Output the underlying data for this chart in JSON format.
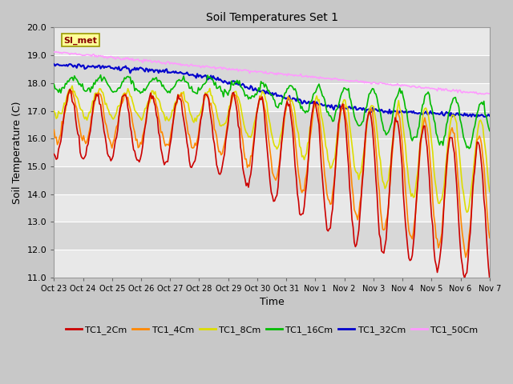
{
  "title": "Soil Temperatures Set 1",
  "xlabel": "Time",
  "ylabel": "Soil Temperature (C)",
  "ylim": [
    11.0,
    20.0
  ],
  "yticks": [
    11.0,
    12.0,
    13.0,
    14.0,
    15.0,
    16.0,
    17.0,
    18.0,
    19.0,
    20.0
  ],
  "xtick_labels": [
    "Oct 23",
    "Oct 24",
    "Oct 25",
    "Oct 26",
    "Oct 27",
    "Oct 28",
    "Oct 29",
    "Oct 30",
    "Oct 31",
    "Nov 1",
    "Nov 2",
    "Nov 3",
    "Nov 4",
    "Nov 5",
    "Nov 6",
    "Nov 7"
  ],
  "series_colors": {
    "TC1_2Cm": "#cc0000",
    "TC1_4Cm": "#ff8800",
    "TC1_8Cm": "#dddd00",
    "TC1_16Cm": "#00bb00",
    "TC1_32Cm": "#0000cc",
    "TC1_50Cm": "#ff99ff"
  },
  "legend_label": "SI_met",
  "fig_bg": "#c8c8c8",
  "plot_bg_light": "#e8e8e8",
  "plot_bg_dark": "#d8d8d8",
  "grid_color": "#ffffff",
  "line_width": 1.2
}
